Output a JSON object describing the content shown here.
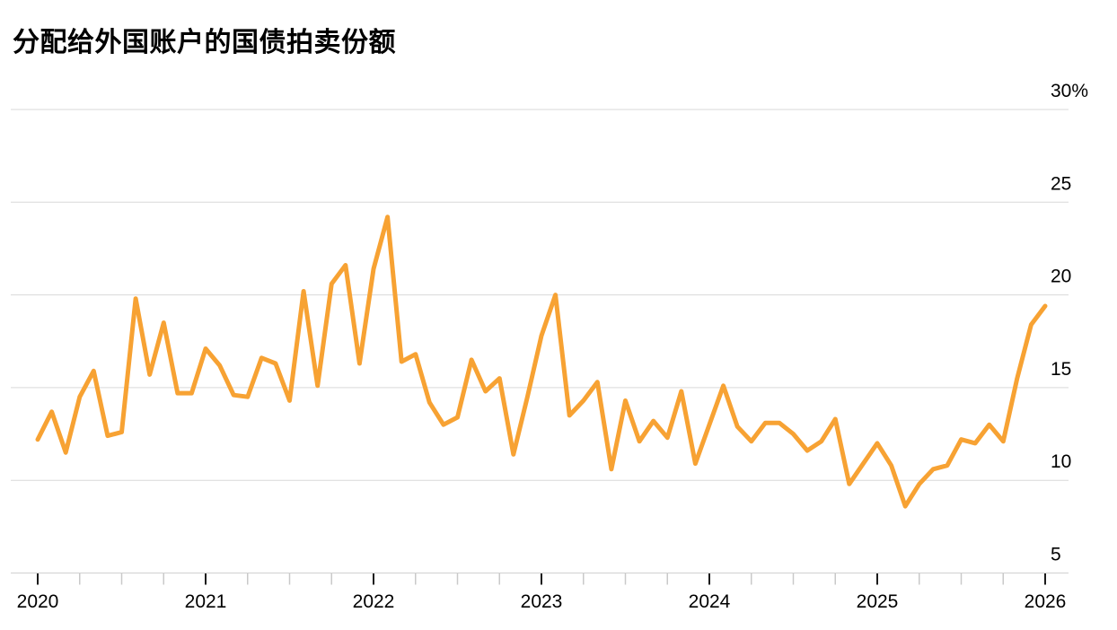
{
  "header": {
    "title": "分配给外国账户的国债拍卖份额"
  },
  "chart_data": {
    "type": "line",
    "title": "分配给外国账户的国债拍卖份额",
    "unit": "%",
    "frequency": "monthly",
    "x_start": "2020-01",
    "x_end": "2026-01",
    "series": [
      {
        "name": "treasury-auction-foreign-allotment-share",
        "values": [
          12.2,
          13.7,
          11.5,
          14.5,
          15.9,
          12.4,
          12.6,
          19.8,
          15.7,
          18.5,
          14.7,
          14.7,
          17.1,
          16.2,
          14.6,
          14.5,
          16.6,
          16.3,
          14.3,
          20.2,
          15.1,
          20.6,
          21.6,
          16.3,
          21.4,
          24.2,
          16.4,
          16.8,
          14.2,
          13.0,
          13.4,
          16.5,
          14.8,
          15.5,
          11.4,
          14.5,
          17.8,
          20.0,
          13.5,
          14.3,
          15.3,
          10.6,
          14.3,
          12.1,
          13.2,
          12.3,
          14.8,
          10.9,
          13.0,
          15.1,
          12.9,
          12.1,
          13.1,
          13.1,
          12.5,
          11.6,
          12.1,
          13.3,
          9.8,
          10.9,
          12.0,
          10.8,
          8.6,
          9.8,
          10.6,
          10.8,
          12.2,
          12.0,
          13.0,
          12.1,
          15.5,
          18.4,
          19.4
        ]
      }
    ],
    "x_tick_labels": [
      "2020",
      "2021",
      "2022",
      "2023",
      "2024",
      "2025",
      "2026"
    ],
    "x_minor_ticks_per_year": 3,
    "y_ticks": [
      30,
      25,
      20,
      15,
      10,
      5
    ],
    "y_tick_label_top": "30%",
    "ylim": [
      5,
      30
    ],
    "grid": "horizontal",
    "legend": "none",
    "colors": {
      "line": "#F7A233",
      "grid": "#D9D9D9",
      "axis_line": "#D0D0D0",
      "tick_major": "#1A1A1A",
      "tick_minor": "#C9C9C9",
      "text": "#000000",
      "background": "#FFFFFF"
    }
  }
}
